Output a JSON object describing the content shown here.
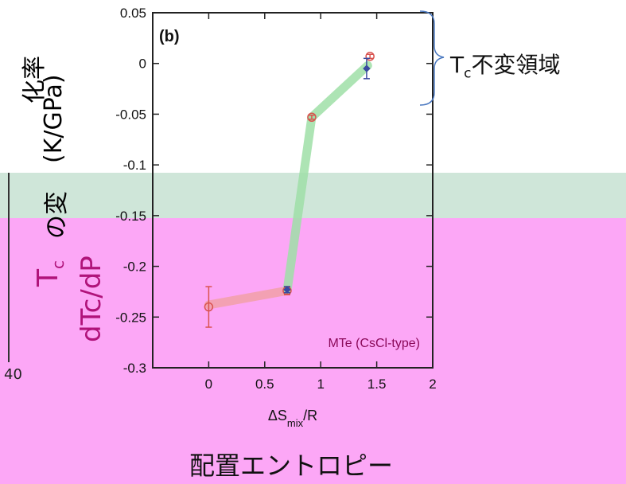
{
  "background": {
    "green_band_color": "#cfe6d9",
    "pink_band_color": "#fca7f6"
  },
  "labels": {
    "panel": "(b)",
    "tc_region_T": "T",
    "tc_region_sub": "c",
    "tc_region_text": "不変領域",
    "ylabel_line1": "化率",
    "ylabel_line2": "(K/GPa)",
    "ylabel_line3": "の変",
    "ylabel_line4_T": "T",
    "ylabel_line4_sub": "c",
    "ylabel_line5": "dTc/dP",
    "left_axis_tick": "40",
    "bottom_caption": "配置エントロピー"
  },
  "chart_data": {
    "type": "line",
    "xlabel": "ΔS",
    "xlabel_sub": "mix",
    "xlabel_suffix": "/R",
    "xlim": [
      -0.5,
      2
    ],
    "ylim": [
      -0.3,
      0.05
    ],
    "xticks": [
      "0",
      "0.5",
      "1",
      "1.5",
      "2"
    ],
    "yticks": [
      "0.05",
      "0",
      "-0.05",
      "-0.1",
      "-0.15",
      "-0.2",
      "-0.25",
      "-0.3"
    ],
    "annotation": "MTe (CsCl-type)",
    "series": [
      {
        "marker": "circle",
        "color": "#d9534f",
        "points": [
          {
            "x": 0,
            "y": -0.24,
            "yerr": 0.02
          },
          {
            "x": 0.7,
            "y": -0.224,
            "yerr": 0.004
          },
          {
            "x": 0.92,
            "y": -0.053,
            "yerr": 0.002
          },
          {
            "x": 1.44,
            "y": 0.007,
            "yerr": 0.002
          }
        ]
      },
      {
        "marker": "diamond",
        "color": "#3a4aa0",
        "points": [
          {
            "x": 0.7,
            "y": -0.223,
            "yerr": 0.003
          },
          {
            "x": 1.41,
            "y": -0.005,
            "yerr": 0.01
          }
        ]
      }
    ],
    "trend_line": {
      "points": [
        {
          "x": 0,
          "y": -0.238
        },
        {
          "x": 0.7,
          "y": -0.224
        },
        {
          "x": 0.92,
          "y": -0.053
        },
        {
          "x": 1.42,
          "y": -0.002
        }
      ],
      "segment_colors": [
        "#f2a0a8",
        "#9fe0a8",
        "#9fe0a8"
      ]
    }
  }
}
